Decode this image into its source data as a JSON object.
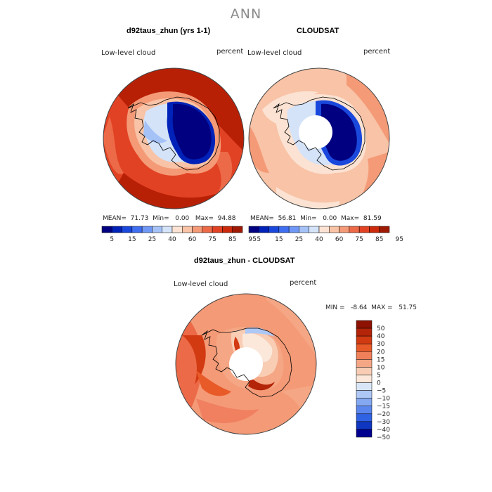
{
  "figure_title": "ANN",
  "panels": [
    {
      "title": "d92taus_zhun (yrs 1-1)",
      "variable": "Low-level cloud",
      "units": "percent",
      "stats": {
        "mean_label": "MEAN=",
        "mean": "71.73",
        "min_label": "Min=",
        "min": "0.00",
        "max_label": "Max=",
        "max": "94.88"
      },
      "colorbar_labels": [
        "5",
        "15",
        "25",
        "40",
        "60",
        "75",
        "85",
        "95"
      ]
    },
    {
      "title": "CLOUDSAT",
      "variable": "Low-level cloud",
      "units": "percent",
      "stats": {
        "mean_label": "MEAN=",
        "mean": "56.81",
        "min_label": "Min=",
        "min": "0.00",
        "max_label": "Max=",
        "max": "81.59"
      },
      "colorbar_labels": [
        "5",
        "15",
        "25",
        "40",
        "60",
        "75",
        "85",
        "95"
      ]
    },
    {
      "title": "d92taus_zhun - CLOUDSAT",
      "variable": "Low-level cloud",
      "units": "percent",
      "stats_text": "MIN =   -8.64  MAX =   51.75",
      "colorbar_labels": [
        "50",
        "40",
        "30",
        "20",
        "15",
        "10",
        "5",
        "0",
        "−5",
        "−10",
        "−15",
        "−20",
        "−30",
        "−40",
        "−50"
      ]
    }
  ],
  "colors": {
    "abs_scale": [
      "#000080",
      "#0022b8",
      "#1a48dc",
      "#3f6ef0",
      "#6f97f5",
      "#a5c2f7",
      "#d4e3f8",
      "#fbe2d2",
      "#f8c3a6",
      "#f49a77",
      "#ec6a48",
      "#e24224",
      "#cc2a0c",
      "#9e1a04"
    ],
    "diff_scale": [
      "#8e1202",
      "#b32408",
      "#d23a12",
      "#e85a28",
      "#f0805a",
      "#f5a684",
      "#f8cdb4",
      "#fbe8da",
      "#d8e6f8",
      "#aec8f5",
      "#84a8f2",
      "#5a86ee",
      "#3062e4",
      "#0e36c0",
      "#000090"
    ],
    "coast": "#000000",
    "rim": "#444444"
  }
}
